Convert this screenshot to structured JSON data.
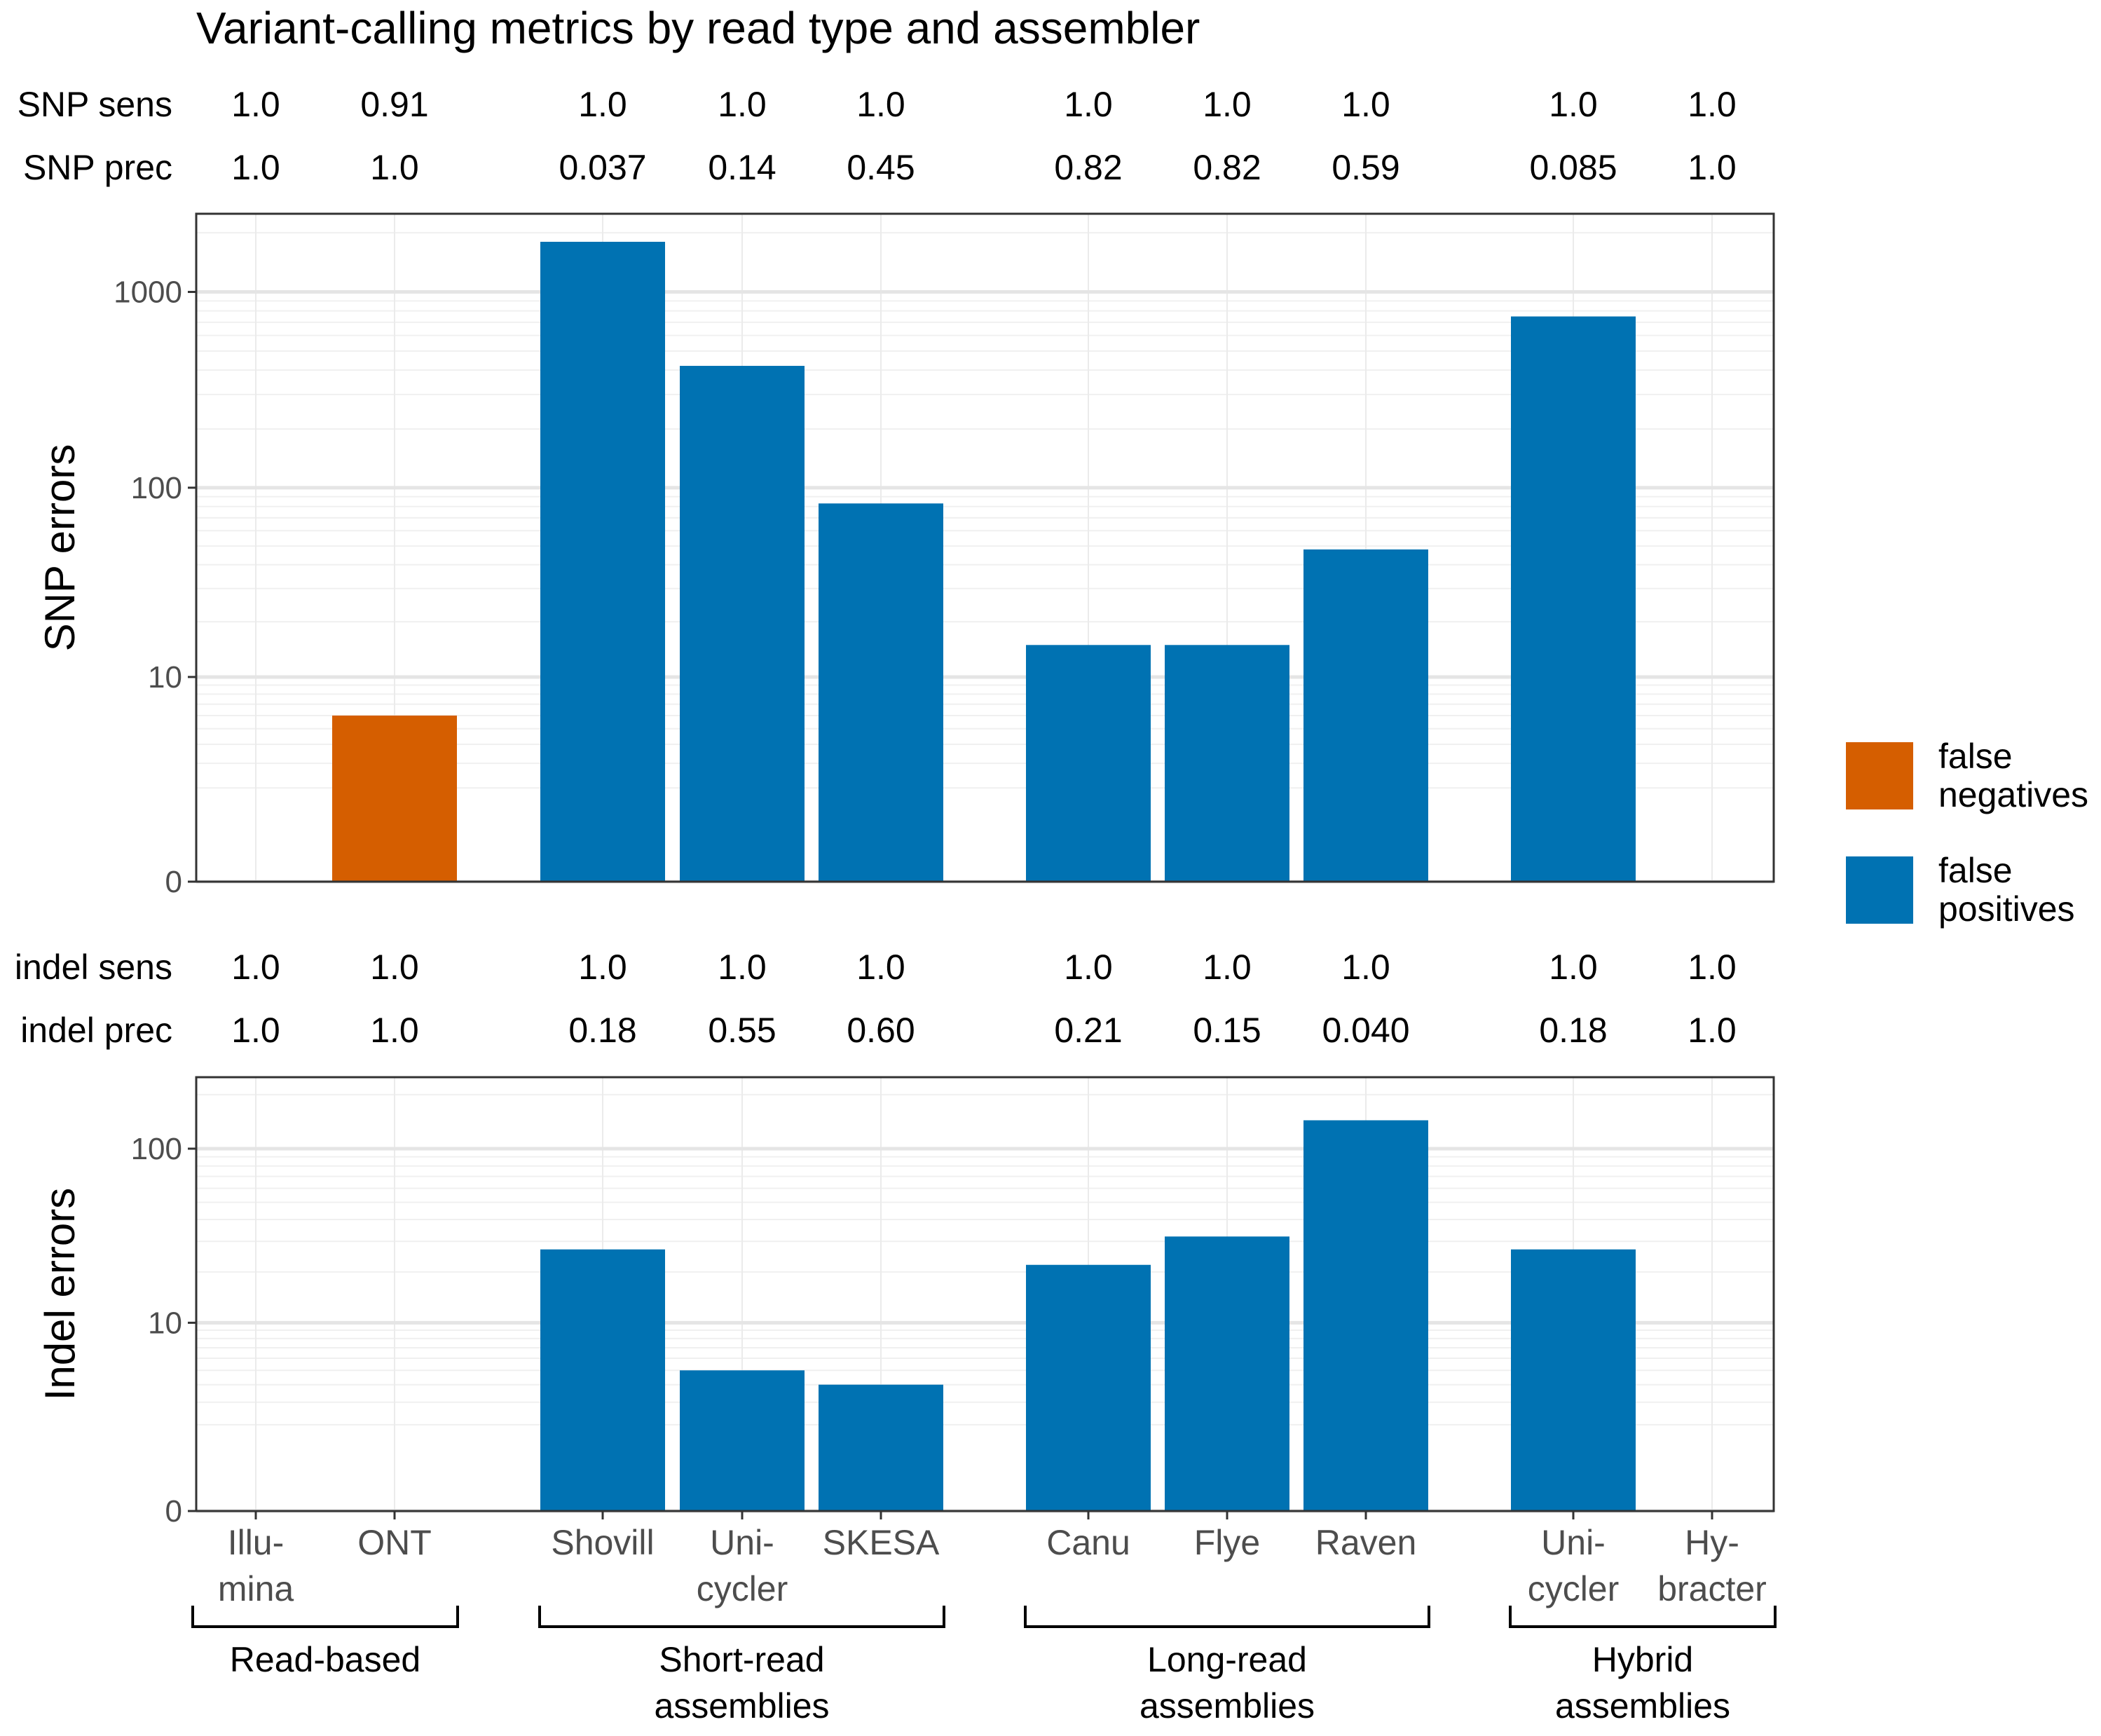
{
  "title": "Variant-calling metrics by read type and assembler",
  "colors": {
    "false_negatives": "#D55E00",
    "false_positives": "#0072B2"
  },
  "legend": {
    "items": [
      {
        "key": "false_negatives",
        "line1": "false",
        "line2": "negatives"
      },
      {
        "key": "false_positives",
        "line1": "false",
        "line2": "positives"
      }
    ]
  },
  "chart_data": {
    "type": "bar",
    "categories": [
      {
        "line1": "Illu-",
        "line2": "mina"
      },
      {
        "line1": "ONT",
        "line2": ""
      },
      {
        "line1": "Shovill",
        "line2": ""
      },
      {
        "line1": "Uni-",
        "line2": "cycler"
      },
      {
        "line1": "SKESA",
        "line2": ""
      },
      {
        "line1": "Canu",
        "line2": ""
      },
      {
        "line1": "Flye",
        "line2": ""
      },
      {
        "line1": "Raven",
        "line2": ""
      },
      {
        "line1": "Uni-",
        "line2": "cycler"
      },
      {
        "line1": "Hy-",
        "line2": "bracter"
      }
    ],
    "groups": [
      {
        "line1": "Read-based",
        "line2": "",
        "from": 0,
        "to": 1
      },
      {
        "line1": "Short-read",
        "line2": "assemblies",
        "from": 2,
        "to": 4
      },
      {
        "line1": "Long-read",
        "line2": "assemblies",
        "from": 5,
        "to": 7
      },
      {
        "line1": "Hybrid",
        "line2": "assemblies",
        "from": 8,
        "to": 9
      }
    ],
    "panels": [
      {
        "ylabel": "SNP errors",
        "ylim": [
          0,
          2500
        ],
        "yticks": [
          0,
          10,
          100,
          1000
        ],
        "metrics": [
          {
            "label": "SNP sens",
            "values": [
              "1.0",
              "0.91",
              "1.0",
              "1.0",
              "1.0",
              "1.0",
              "1.0",
              "1.0",
              "1.0",
              "1.0"
            ]
          },
          {
            "label": "SNP prec",
            "values": [
              "1.0",
              "1.0",
              "0.037",
              "0.14",
              "0.45",
              "0.82",
              "0.82",
              "0.59",
              "0.085",
              "1.0"
            ]
          }
        ],
        "series": [
          {
            "key": "false_negatives",
            "values": [
              0,
              6,
              0,
              0,
              0,
              0,
              0,
              0,
              0,
              0
            ]
          },
          {
            "key": "false_positives",
            "values": [
              0,
              0,
              1800,
              420,
              83,
              15,
              15,
              48,
              750,
              0
            ]
          }
        ]
      },
      {
        "ylabel": "Indel errors",
        "ylim": [
          0,
          250
        ],
        "yticks": [
          0,
          10,
          100
        ],
        "metrics": [
          {
            "label": "indel sens",
            "values": [
              "1.0",
              "1.0",
              "1.0",
              "1.0",
              "1.0",
              "1.0",
              "1.0",
              "1.0",
              "1.0",
              "1.0"
            ]
          },
          {
            "label": "indel prec",
            "values": [
              "1.0",
              "1.0",
              "0.18",
              "0.55",
              "0.60",
              "0.21",
              "0.15",
              "0.040",
              "0.18",
              "1.0"
            ]
          }
        ],
        "series": [
          {
            "key": "false_negatives",
            "values": [
              0,
              0,
              0,
              0,
              0,
              0,
              0,
              0,
              0,
              0
            ]
          },
          {
            "key": "false_positives",
            "values": [
              0,
              0,
              27,
              5,
              4,
              22,
              32,
              144,
              27,
              0
            ]
          }
        ]
      }
    ]
  }
}
